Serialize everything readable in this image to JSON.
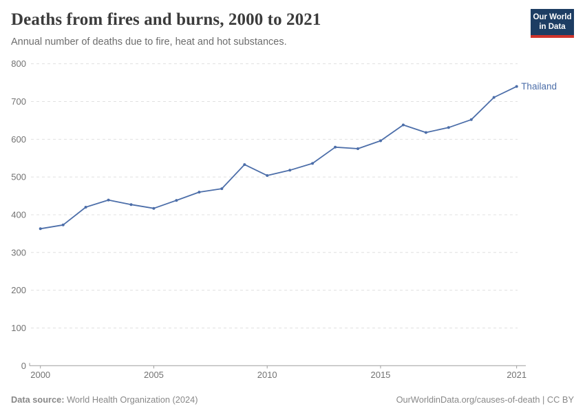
{
  "header": {
    "title": "Deaths from fires and burns, 2000 to 2021",
    "subtitle": "Annual number of deaths due to fire, heat and hot substances.",
    "logo": {
      "line1": "Our World",
      "line2": "in Data"
    }
  },
  "chart_data": {
    "type": "line",
    "title": "Deaths from fires and burns, 2000 to 2021",
    "subtitle": "Annual number of deaths due to fire, heat and hot substances.",
    "xlabel": "",
    "ylabel": "",
    "xlim": [
      2000,
      2021
    ],
    "ylim": [
      0,
      800
    ],
    "x_ticks": [
      2000,
      2005,
      2010,
      2015,
      2021
    ],
    "y_ticks": [
      0,
      100,
      200,
      300,
      400,
      500,
      600,
      700,
      800
    ],
    "grid": "horizontal-dashed",
    "legend_position": "end-of-line-label",
    "x": [
      2000,
      2001,
      2002,
      2003,
      2004,
      2005,
      2006,
      2007,
      2008,
      2009,
      2010,
      2011,
      2012,
      2013,
      2014,
      2015,
      2016,
      2017,
      2018,
      2019,
      2020,
      2021
    ],
    "series": [
      {
        "name": "Thailand",
        "color": "#4c6ea9",
        "values": [
          363,
          373,
          420,
          439,
          427,
          417,
          438,
          460,
          469,
          533,
          504,
          518,
          536,
          579,
          575,
          596,
          638,
          618,
          631,
          652,
          711,
          740
        ]
      }
    ]
  },
  "footer": {
    "source_label": "Data source:",
    "source_value": " World Health Organization (2024)",
    "link": "OurWorldinData.org/causes-of-death | CC BY"
  },
  "colors": {
    "series_blue": "#4c6ea9",
    "gridline": "#e0e0e0",
    "axis": "#9e9e9e",
    "tick_label": "#727272",
    "title_text": "#3b3b3b",
    "subtitle_text": "#6d6d6d",
    "footer_text": "#888888",
    "logo_bg": "#1d3d63",
    "logo_stripe": "#d0342c"
  }
}
